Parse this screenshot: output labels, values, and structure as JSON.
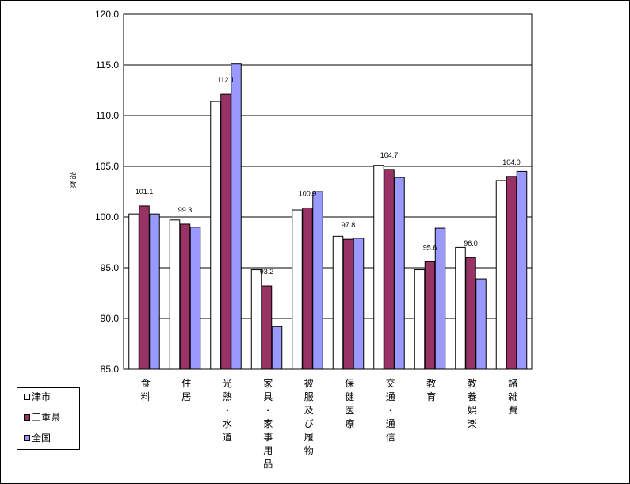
{
  "chart_data": {
    "type": "bar",
    "ylabel": "指数",
    "ylim": [
      85,
      120
    ],
    "yticks": [
      "85.0",
      "90.0",
      "95.0",
      "100.0",
      "105.0",
      "110.0",
      "115.0",
      "120.0"
    ],
    "categories": [
      "食料",
      "住居",
      "光熱・水道",
      "家具・家事用品",
      "被服及び履物",
      "保健医療",
      "交通・通信",
      "教育",
      "教養娯楽",
      "諸雑費"
    ],
    "series": [
      {
        "name": "津市",
        "color": "#ffffff",
        "values": [
          100.3,
          99.7,
          111.4,
          94.8,
          100.7,
          98.1,
          105.1,
          94.8,
          97.0,
          103.6
        ]
      },
      {
        "name": "三重県",
        "color": "#993366",
        "values": [
          101.1,
          99.3,
          112.1,
          93.2,
          100.9,
          97.8,
          104.7,
          95.6,
          96.0,
          104.0
        ]
      },
      {
        "name": "全国",
        "color": "#9999ff",
        "values": [
          100.3,
          99.0,
          115.1,
          89.2,
          102.5,
          97.9,
          103.9,
          98.9,
          93.9,
          104.5
        ]
      }
    ],
    "data_labels": [
      "101.1",
      "99.3",
      "112.1",
      "93.2",
      "100.9",
      "97.8",
      "104.7",
      "95.6",
      "96.0",
      "104.0"
    ],
    "grid": true,
    "legend_position": "bottom-left"
  }
}
